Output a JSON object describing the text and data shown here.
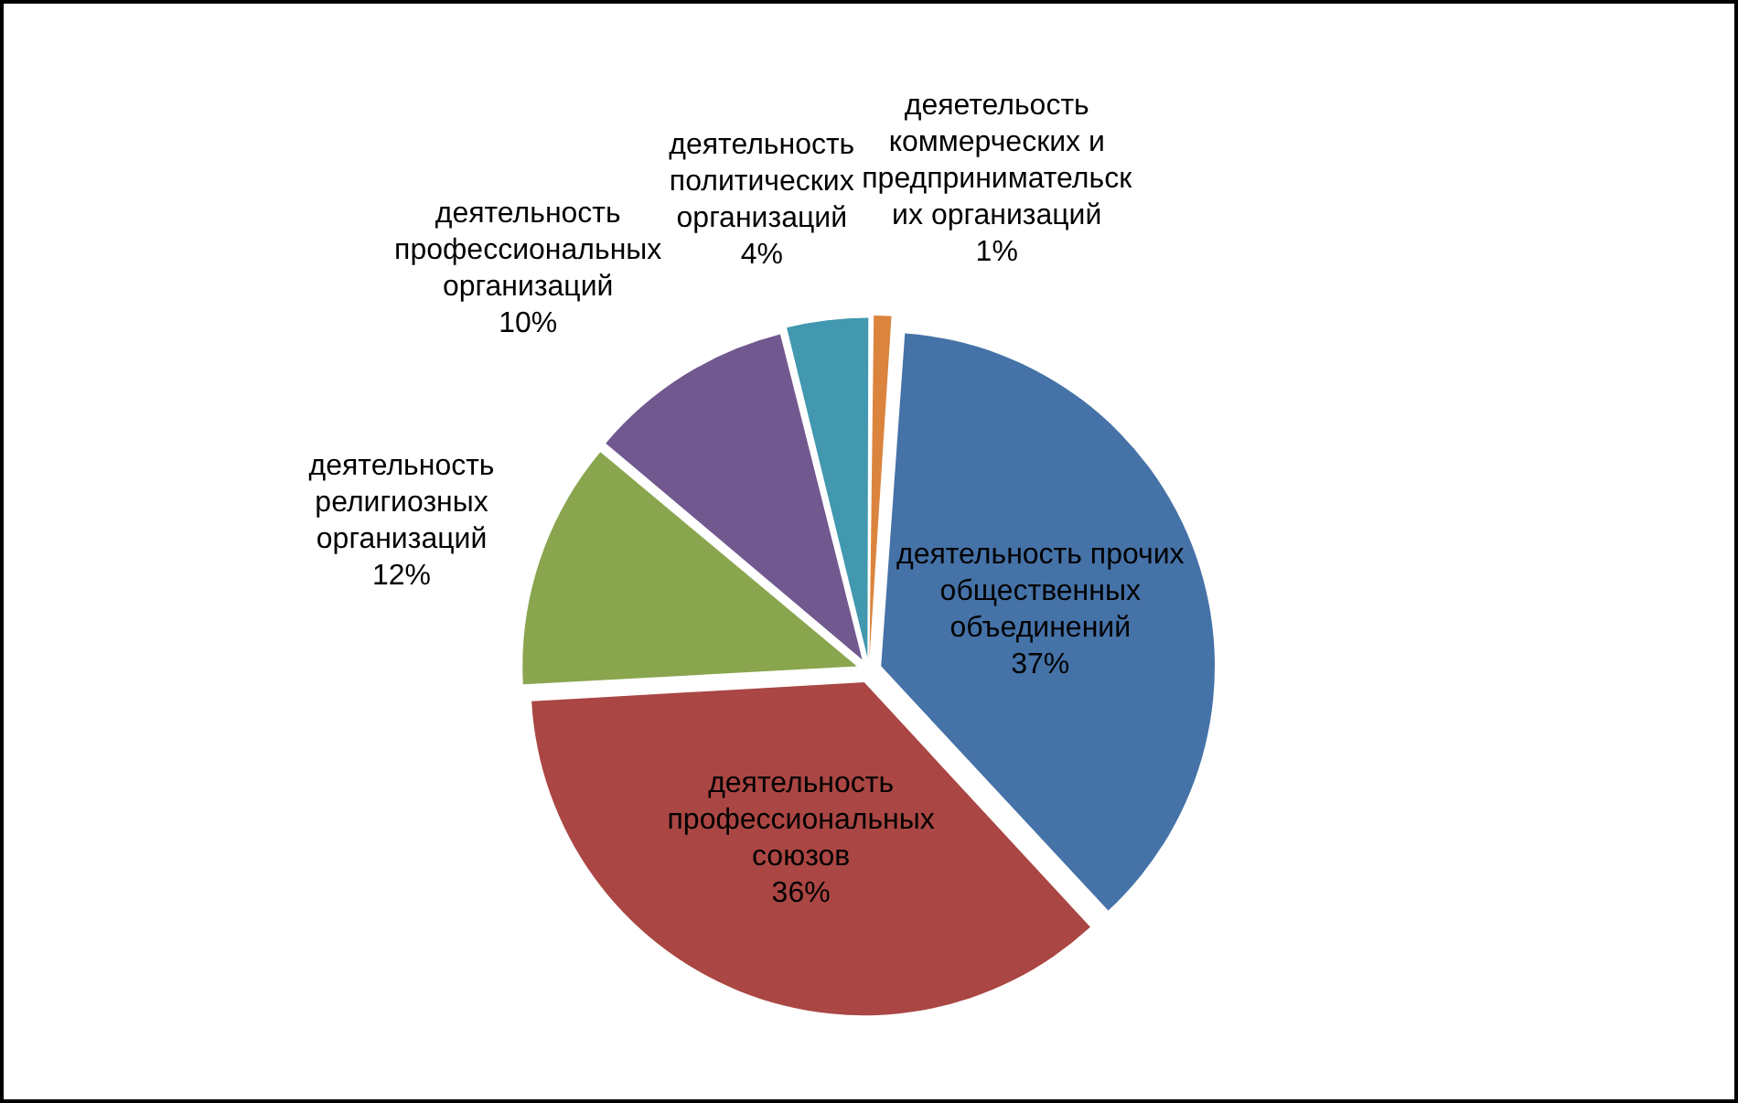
{
  "chart_data": {
    "type": "pie",
    "categories": [
      "деятельность прочих общественных объединений",
      "деятельность профессиональных союзов",
      "деятельность религиозных организаций",
      "деятельность профессиональных организаций",
      "деятельность политических организаций",
      "деяетельость коммерческих и предпринимательских организаций"
    ],
    "values": [
      37,
      36,
      12,
      10,
      4,
      1
    ],
    "colors": [
      "#4572a7",
      "#aa4643",
      "#89a54e",
      "#71588f",
      "#4198af",
      "#db843d"
    ],
    "value_labels": [
      "37%",
      "36%",
      "12%",
      "10%",
      "4%",
      "1%"
    ],
    "legend": false
  }
}
